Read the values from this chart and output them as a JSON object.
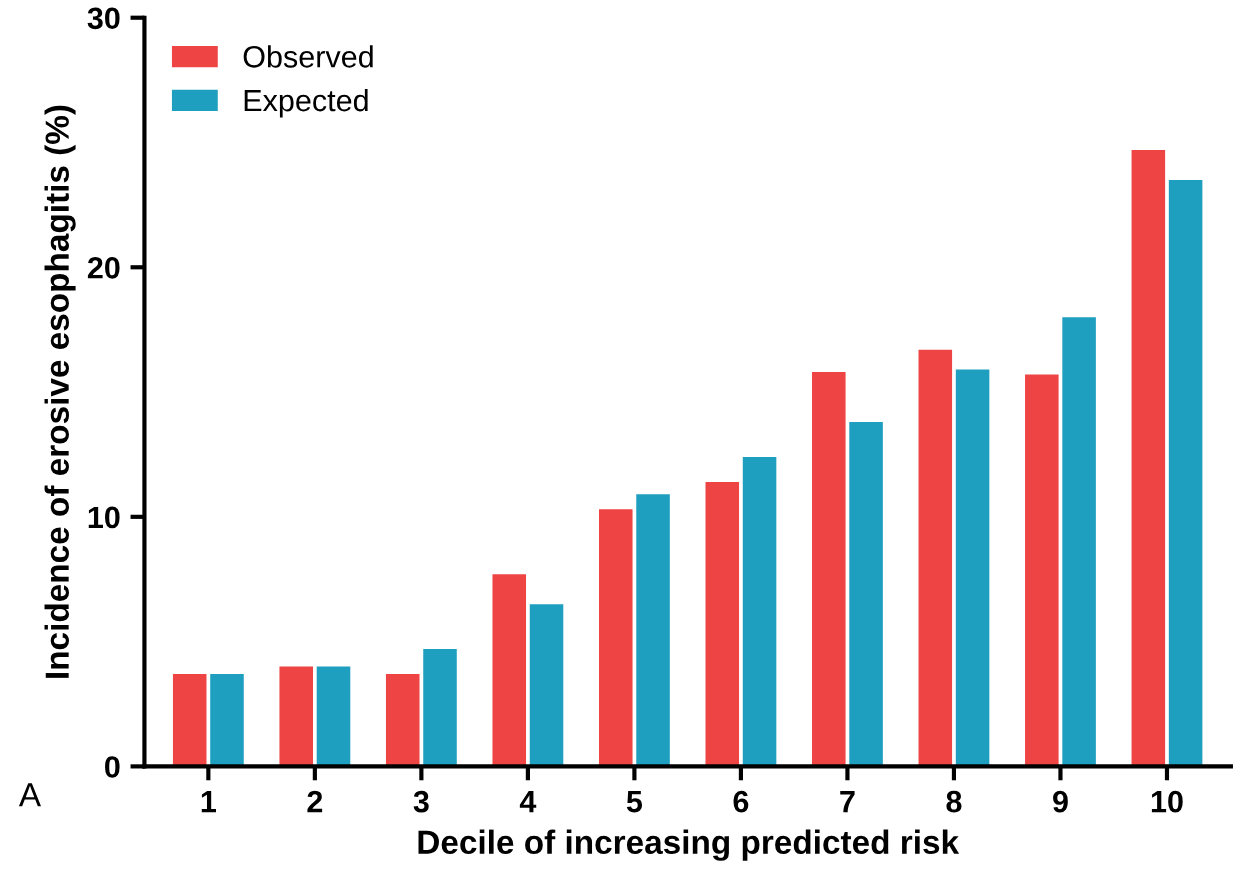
{
  "chart_data": {
    "type": "bar",
    "xlabel": "Decile of increasing predicted risk",
    "ylabel": "Incidence of erosive esophagitis (%)",
    "categories": [
      "1",
      "2",
      "3",
      "4",
      "5",
      "6",
      "7",
      "8",
      "9",
      "10"
    ],
    "series": [
      {
        "name": "Observed",
        "color": "#ee4444",
        "values": [
          3.7,
          4.0,
          3.7,
          7.7,
          10.3,
          11.4,
          15.8,
          16.7,
          15.7,
          24.7
        ]
      },
      {
        "name": "Expected",
        "color": "#1f9fbf",
        "values": [
          3.7,
          4.0,
          4.7,
          6.5,
          10.9,
          12.4,
          13.8,
          15.9,
          18.0,
          23.5
        ]
      }
    ],
    "ylim": [
      0,
      30
    ],
    "yticks": [
      0,
      10,
      20,
      30
    ],
    "grid": false,
    "legend": "top left",
    "annotations": [
      "A"
    ]
  }
}
